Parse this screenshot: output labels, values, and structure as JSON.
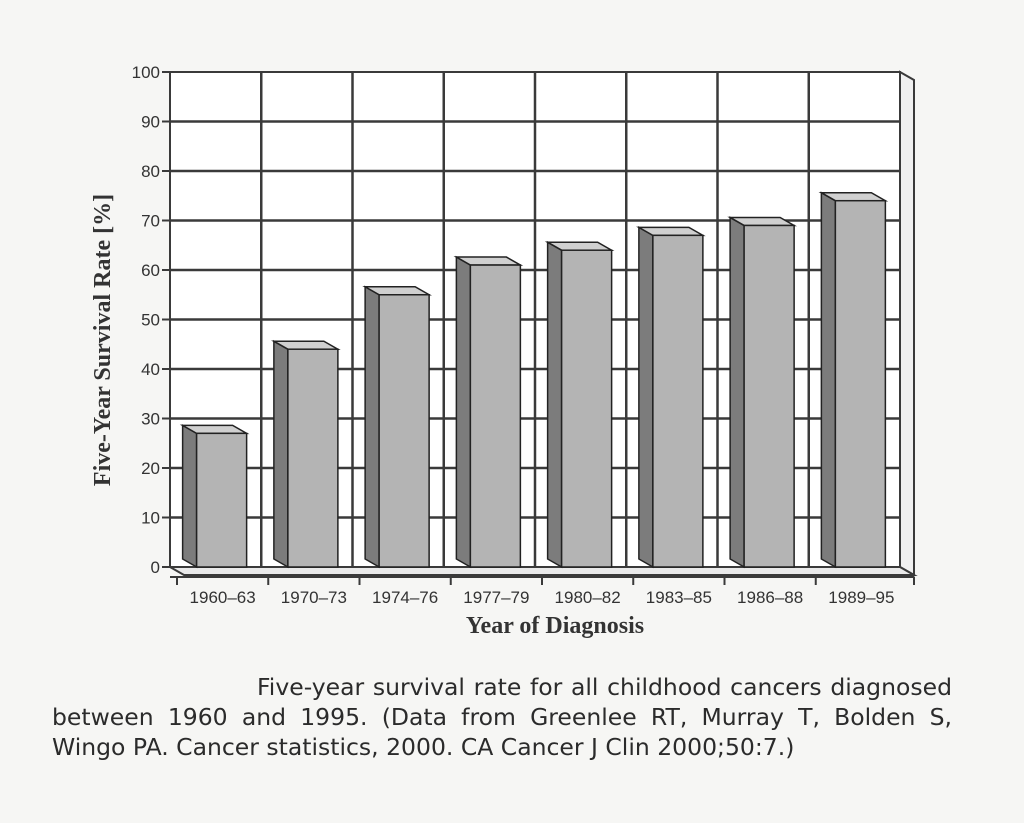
{
  "chart_data": {
    "type": "bar",
    "categories": [
      "1960–63",
      "1970–73",
      "1974–76",
      "1977–79",
      "1980–82",
      "1983–85",
      "1986–88",
      "1989–95"
    ],
    "values": [
      27,
      44,
      55,
      61,
      64,
      67,
      69,
      74
    ],
    "xlabel": "Year of Diagnosis",
    "ylabel": "Five-Year Survival Rate [%]",
    "ylim": [
      0,
      100
    ],
    "yticks": [
      0,
      10,
      20,
      30,
      40,
      50,
      60,
      70,
      80,
      90,
      100
    ],
    "grid": true,
    "style": "3d",
    "colors": {
      "bar_front": "#b4b4b4",
      "bar_side": "#7c7c7c",
      "bar_top": "#d0d0d0",
      "grid": "#3a3a3a"
    }
  },
  "caption": "Five-year survival rate for all childhood cancers diagnosed between 1960 and 1995. (Data from Greenlee RT, Murray T, Bolden S, Wingo PA. Cancer statistics, 2000. CA Cancer J Clin 2000;50:7.)"
}
